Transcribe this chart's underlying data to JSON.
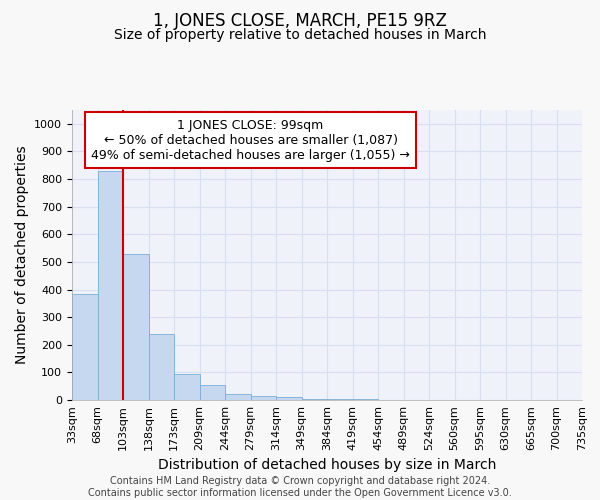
{
  "title": "1, JONES CLOSE, MARCH, PE15 9RZ",
  "subtitle": "Size of property relative to detached houses in March",
  "xlabel": "Distribution of detached houses by size in March",
  "ylabel": "Number of detached properties",
  "bin_labels": [
    "33sqm",
    "68sqm",
    "103sqm",
    "138sqm",
    "173sqm",
    "209sqm",
    "244sqm",
    "279sqm",
    "314sqm",
    "349sqm",
    "384sqm",
    "419sqm",
    "454sqm",
    "489sqm",
    "524sqm",
    "560sqm",
    "595sqm",
    "630sqm",
    "665sqm",
    "700sqm",
    "735sqm"
  ],
  "bar_values": [
    385,
    830,
    530,
    240,
    95,
    53,
    20,
    16,
    12,
    5,
    3,
    2,
    1,
    0,
    0,
    0,
    0,
    0,
    0,
    0
  ],
  "bar_color": "#c5d8f0",
  "bar_edge_color": "#7aaed6",
  "red_line_bin_index": 2,
  "annotation_text_line1": "1 JONES CLOSE: 99sqm",
  "annotation_text_line2": "← 50% of detached houses are smaller (1,087)",
  "annotation_text_line3": "49% of semi-detached houses are larger (1,055) →",
  "annotation_box_facecolor": "#ffffff",
  "annotation_box_edgecolor": "#cc0000",
  "ylim": [
    0,
    1050
  ],
  "yticks": [
    0,
    100,
    200,
    300,
    400,
    500,
    600,
    700,
    800,
    900,
    1000
  ],
  "fig_facecolor": "#f8f8f8",
  "ax_facecolor": "#f0f2fa",
  "grid_color": "#d8dff0",
  "title_fontsize": 12,
  "subtitle_fontsize": 10,
  "axis_label_fontsize": 10,
  "tick_fontsize": 8,
  "annotation_fontsize": 9,
  "footer_fontsize": 7,
  "footer_line1": "Contains HM Land Registry data © Crown copyright and database right 2024.",
  "footer_line2": "Contains public sector information licensed under the Open Government Licence v3.0."
}
